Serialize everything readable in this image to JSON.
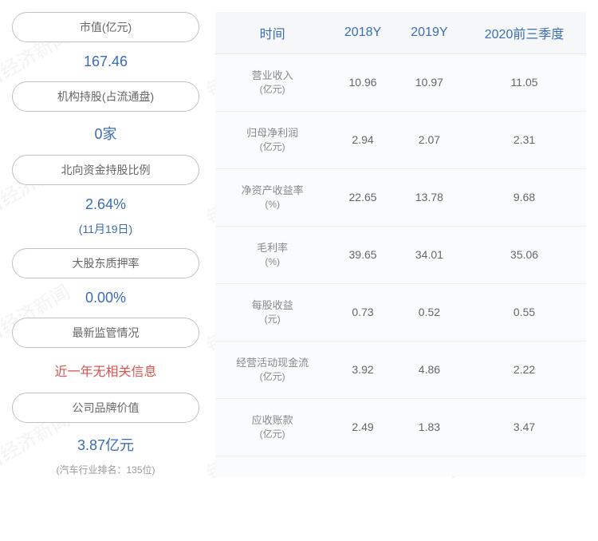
{
  "watermark_text": "每日经济新闻",
  "left_panel": {
    "items": [
      {
        "label": "市值(亿元)",
        "value": "167.46",
        "sub": null,
        "color": "blue"
      },
      {
        "label": "机构持股(占流通盘)",
        "value": "0家",
        "sub": null,
        "color": "blue"
      },
      {
        "label": "北向资金持股比例",
        "value": "2.64%",
        "sub": "(11月19日)",
        "color": "blue"
      },
      {
        "label": "大股东质押率",
        "value": "0.00%",
        "sub": null,
        "color": "blue"
      },
      {
        "label": "最新监管情况",
        "value": "近一年无相关信息",
        "sub": null,
        "color": "red"
      },
      {
        "label": "公司品牌价值",
        "value": "3.87亿元",
        "sub": "(汽车行业排名：135位)",
        "color": "blue",
        "sub_gray": true
      }
    ]
  },
  "table": {
    "headers": [
      "时间",
      "2018Y",
      "2019Y",
      "2020前三季度"
    ],
    "rows": [
      {
        "label": "营业收入",
        "unit": "(亿元)",
        "values": [
          "10.96",
          "10.97",
          "11.05"
        ]
      },
      {
        "label": "归母净利润",
        "unit": "(亿元)",
        "values": [
          "2.94",
          "2.07",
          "2.31"
        ]
      },
      {
        "label": "净资产收益率",
        "unit": "(%)",
        "values": [
          "22.65",
          "13.78",
          "9.68"
        ]
      },
      {
        "label": "毛利率",
        "unit": "(%)",
        "values": [
          "39.65",
          "34.01",
          "35.06"
        ]
      },
      {
        "label": "每股收益",
        "unit": "(元)",
        "values": [
          "0.73",
          "0.52",
          "0.55"
        ]
      },
      {
        "label": "经营活动现金流",
        "unit": "(亿元)",
        "values": [
          "3.92",
          "4.86",
          "2.22"
        ]
      },
      {
        "label": "应收账款",
        "unit": "(亿元)",
        "values": [
          "2.49",
          "1.83",
          "3.47"
        ]
      }
    ]
  },
  "styling": {
    "pill_border_color": "#c0c0c0",
    "pill_text_color": "#666666",
    "value_blue_color": "#3b6db5",
    "value_red_color": "#d9534f",
    "header_color": "#3b6db5",
    "cell_color": "#666666",
    "table_bg": "#fafbfc",
    "border_color": "#e5e5e5"
  }
}
